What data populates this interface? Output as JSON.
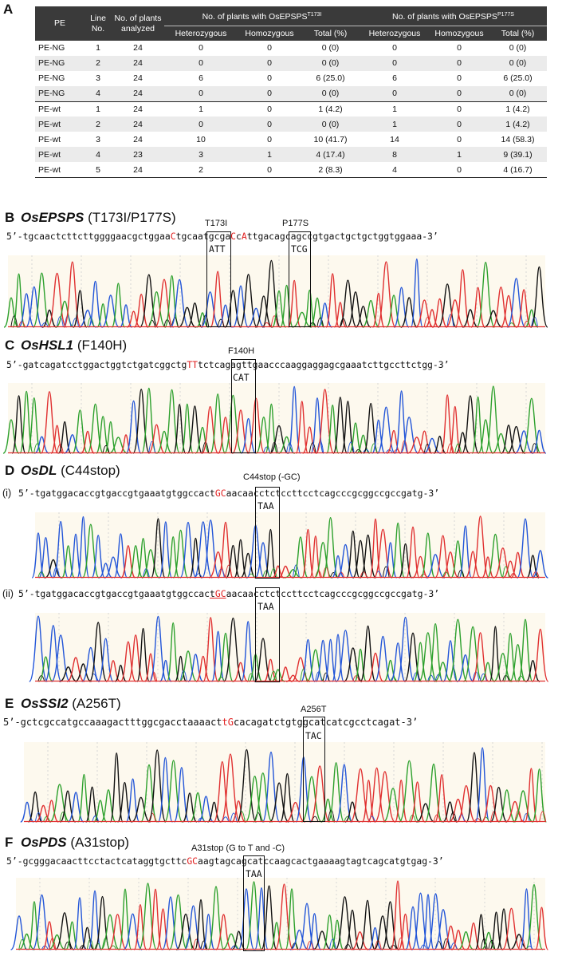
{
  "table": {
    "letter": "A",
    "headers": {
      "pe": "PE",
      "line": "Line No.",
      "plants": "No. of plants analyzed",
      "grp1": "No. of plants with OsEPSPS",
      "grp1_sup": "T173I",
      "grp2": "No. of plants with OsEPSPS",
      "grp2_sup": "P177S",
      "het": "Heterozygous",
      "hom": "Homozygous",
      "total": "Total (%)"
    },
    "rows": [
      [
        "PE-NG",
        "1",
        "24",
        "0",
        "0",
        "0 (0)",
        "0",
        "0",
        "0 (0)"
      ],
      [
        "PE-NG",
        "2",
        "24",
        "0",
        "0",
        "0 (0)",
        "0",
        "0",
        "0 (0)"
      ],
      [
        "PE-NG",
        "3",
        "24",
        "6",
        "0",
        "6 (25.0)",
        "6",
        "0",
        "6 (25.0)"
      ],
      [
        "PE-NG",
        "4",
        "24",
        "0",
        "0",
        "0 (0)",
        "0",
        "0",
        "0 (0)"
      ],
      [
        "PE-wt",
        "1",
        "24",
        "1",
        "0",
        "1 (4.2)",
        "1",
        "0",
        "1 (4.2)"
      ],
      [
        "PE-wt",
        "2",
        "24",
        "0",
        "0",
        "0 (0)",
        "1",
        "0",
        "1 (4.2)"
      ],
      [
        "PE-wt",
        "3",
        "24",
        "10",
        "0",
        "10 (41.7)",
        "14",
        "0",
        "14 (58.3)"
      ],
      [
        "PE-wt",
        "4",
        "23",
        "3",
        "1",
        "4 (17.4)",
        "8",
        "1",
        "9 (39.1)"
      ],
      [
        "PE-wt",
        "5",
        "24",
        "2",
        "0",
        "2 (8.3)",
        "4",
        "0",
        "4 (16.7)"
      ]
    ]
  },
  "panels": {
    "B": {
      "letter": "B",
      "gene": "OsEPSPS",
      "mutation": " (T173I/P177S)",
      "seq": [
        {
          "t": "5’-tgcaactcttcttggggaacgctggaa"
        },
        {
          "t": "C",
          "m": true
        },
        {
          "t": "tgcaatgcga"
        },
        {
          "t": "C",
          "m": true
        },
        {
          "t": "c"
        },
        {
          "t": "A",
          "m": true
        },
        {
          "t": "ttgacagcagccgtgactgctgctggtggaaa-3’"
        }
      ],
      "sites": [
        {
          "label": "T173I",
          "codon": "ATT"
        },
        {
          "label": "P177S",
          "codon": "TCG"
        }
      ]
    },
    "C": {
      "letter": "C",
      "gene": "OsHSL1",
      "mutation": " (F140H)",
      "seq": [
        {
          "t": "5’-gatcagatcctggactggtctgatcggctg"
        },
        {
          "t": "TT",
          "m": true
        },
        {
          "t": "tctcagagttgaacccaaggaggagcgaaatcttgccttctgg-3’"
        }
      ],
      "sites": [
        {
          "label": "F140H",
          "codon": "CAT"
        }
      ]
    },
    "D": {
      "letter": "D",
      "gene": "OsDL",
      "mutation": " (C44stop)",
      "site_label": "C44stop (-GC)",
      "sub1": "(i)",
      "sub2": "(ii)",
      "seq": [
        {
          "t": "5’-tgatggacaccgtgaccgtgaaatgtggccact"
        },
        {
          "t": "GC",
          "m": true
        },
        {
          "t": "aacaacctctccttcctcagcccgcggccgccgatg-3’"
        }
      ],
      "seq2": [
        {
          "t": "5’-tgatggacaccgtgaccgtgaaatgtggccac"
        },
        {
          "t": "t",
          "u": true
        },
        {
          "t": "GC",
          "m": true,
          "u": true
        },
        {
          "t": "aacaacctctccttcctcagcccgcggccgccgatg-3’"
        }
      ],
      "codon": "TAA"
    },
    "E": {
      "letter": "E",
      "gene": "OsSSI2",
      "mutation": " (A256T)",
      "seq": [
        {
          "t": "5’-gctcgccatgccaaagactttggcgacctaaaact"
        },
        {
          "t": "tG",
          "m": true
        },
        {
          "t": "cacagatctgtggcatcatcgcctcagat-3’"
        }
      ],
      "sites": [
        {
          "label": "A256T",
          "codon": "TAC"
        }
      ]
    },
    "F": {
      "letter": "F",
      "gene": "OsPDS",
      "mutation": " (A31stop)",
      "seq": [
        {
          "t": "5’-gcgggacaacttcctactcataggtgcttc"
        },
        {
          "t": "GC",
          "m": true
        },
        {
          "t": "aagtagcagcatccaagcactgaaaagtagtcagcatgtgag-3’"
        }
      ],
      "sites": [
        {
          "label": "A31stop (G to T and -C)",
          "codon": "TAA"
        }
      ]
    }
  },
  "trace_colors": {
    "A": "#2ca02c",
    "C": "#2255d8",
    "G": "#111111",
    "T": "#e03030"
  }
}
